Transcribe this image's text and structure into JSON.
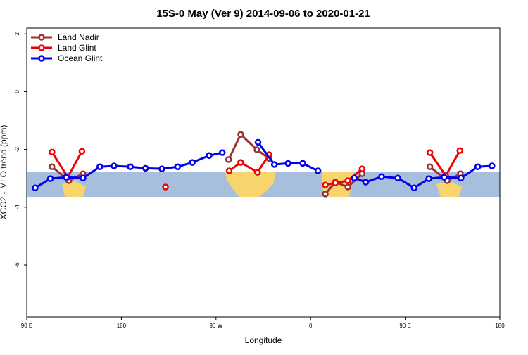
{
  "chart_data": {
    "type": "line",
    "title": "15S-0 May (Ver 9)   2014-09-06 to 2020-01-21",
    "xlabel": "Longitude",
    "ylabel": "XCO2 - MLO trend (ppm)",
    "xlim": [
      90,
      540
    ],
    "xticks": [
      {
        "value": 90,
        "label": "90 E"
      },
      {
        "value": 180,
        "label": "180"
      },
      {
        "value": 270,
        "label": "90 W"
      },
      {
        "value": 360,
        "label": "0"
      },
      {
        "value": 450,
        "label": "90 E"
      },
      {
        "value": 540,
        "label": "180"
      }
    ],
    "ylim": [
      -7.8,
      2.2
    ],
    "yticks": [
      2,
      0,
      -2,
      -4,
      -6
    ],
    "legend": "top-left",
    "series": [
      {
        "name": "Land Nadir",
        "color": "#993333",
        "x": [
          114,
          130,
          143.5,
          null,
          282,
          293.5,
          309,
          320.5,
          null,
          374,
          383.5,
          395.5,
          409,
          null,
          473.5,
          490,
          502.5
        ],
        "values": [
          -2.6,
          -3.08,
          -2.84,
          null,
          -2.35,
          -1.48,
          -2.01,
          -2.31,
          null,
          -3.54,
          -3.13,
          -3.3,
          -2.84,
          null,
          -2.6,
          -3.08,
          -2.84
        ]
      },
      {
        "name": "Land Glint",
        "color": "#ee0000",
        "x": [
          114,
          129,
          142.5,
          null,
          222,
          null,
          282.5,
          293.5,
          309.5,
          320.5,
          null,
          374,
          383.5,
          395.5,
          409,
          null,
          473.5,
          488.5,
          502
        ],
        "values": [
          -2.09,
          -2.96,
          -2.06,
          null,
          -3.3,
          null,
          -2.74,
          -2.45,
          -2.79,
          -2.18,
          null,
          -3.23,
          -3.16,
          -3.08,
          -2.67,
          null,
          -2.11,
          -2.91,
          -2.04
        ]
      },
      {
        "name": "Ocean Glint",
        "color": "#0000ee",
        "x": [
          98,
          112.5,
          127.5,
          143.5,
          159.5,
          173,
          188.5,
          203,
          218.5,
          233.5,
          247.5,
          263.5,
          276,
          null,
          310,
          325.5,
          338.5,
          352.5,
          367,
          null,
          401.5,
          412.5,
          427.5,
          443,
          458.5,
          472.5,
          487,
          503,
          519,
          532.5
        ],
        "values": [
          -3.33,
          -3.01,
          -2.96,
          -2.99,
          -2.6,
          -2.57,
          -2.6,
          -2.65,
          -2.67,
          -2.6,
          -2.45,
          -2.21,
          -2.11,
          null,
          -1.75,
          -2.52,
          -2.48,
          -2.48,
          -2.74,
          null,
          -2.99,
          -3.13,
          -2.94,
          -2.99,
          -3.33,
          -3.01,
          -2.96,
          -2.99,
          -2.6,
          -2.57
        ]
      }
    ]
  }
}
